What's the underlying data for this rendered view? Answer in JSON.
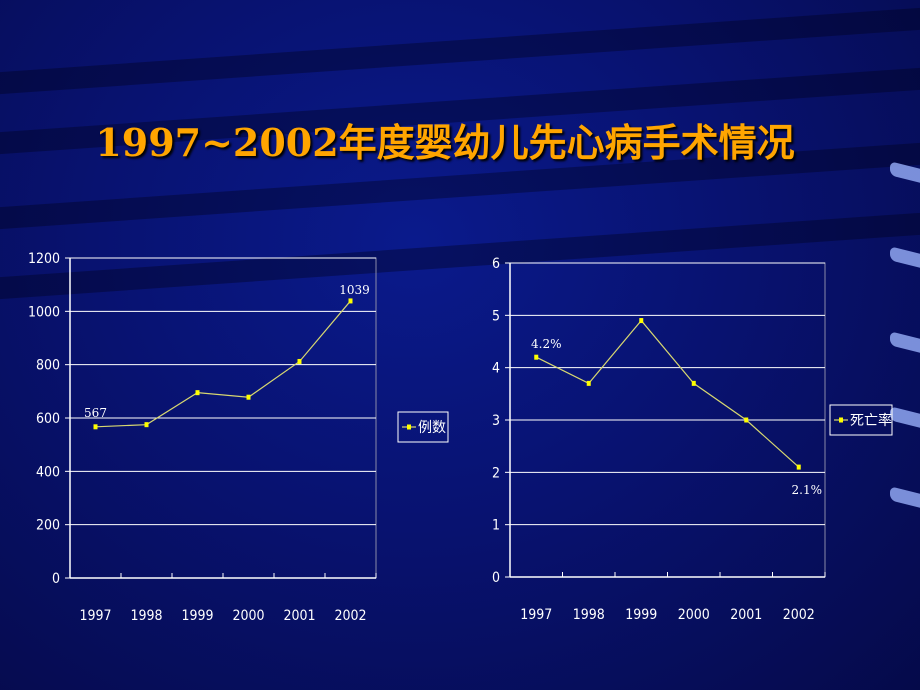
{
  "page": {
    "title": "1997~2002年度婴幼儿先心病手术情况"
  },
  "chart_data": [
    {
      "type": "line",
      "categories": [
        "1997",
        "1998",
        "1999",
        "2000",
        "2001",
        "2002"
      ],
      "series": [
        {
          "name": "例数",
          "values": [
            567,
            575,
            695,
            678,
            812,
            1039
          ]
        }
      ],
      "ylim": [
        0,
        1200
      ],
      "yticks": [
        0,
        200,
        400,
        600,
        800,
        1000,
        1200
      ],
      "data_labels": [
        {
          "index": 0,
          "text": "567"
        },
        {
          "index": 5,
          "text": "1039"
        }
      ],
      "grid": true,
      "legend": "right",
      "colors": {
        "line": "#d8d870",
        "marker": "#ffff00",
        "grid": "#ffffff"
      }
    },
    {
      "type": "line",
      "categories": [
        "1997",
        "1998",
        "1999",
        "2000",
        "2001",
        "2002"
      ],
      "series": [
        {
          "name": "死亡率",
          "values": [
            4.2,
            3.7,
            4.9,
            3.7,
            3.0,
            2.1
          ]
        }
      ],
      "ylim": [
        0,
        6
      ],
      "yticks": [
        0,
        1,
        2,
        3,
        4,
        5,
        6
      ],
      "data_labels": [
        {
          "index": 0,
          "text": "4.2%"
        },
        {
          "index": 5,
          "text": "2.1%"
        }
      ],
      "grid": true,
      "legend": "right",
      "colors": {
        "line": "#d8d870",
        "marker": "#ffff00",
        "grid": "#ffffff"
      }
    }
  ]
}
